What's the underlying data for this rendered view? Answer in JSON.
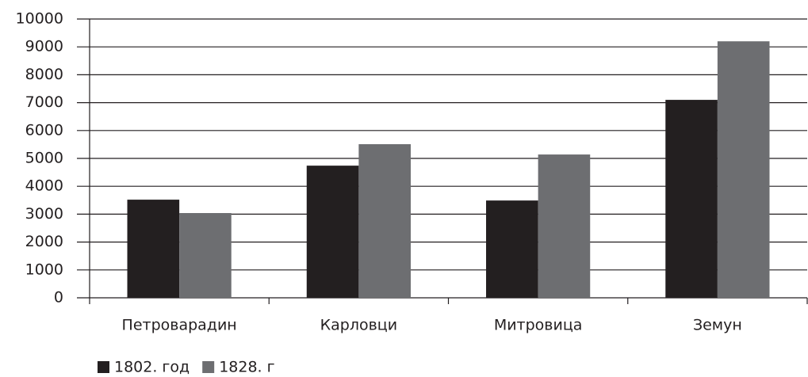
{
  "chart_data": {
    "type": "bar",
    "categories": [
      "Петроварадин",
      "Карловци",
      "Митровица",
      "Земун"
    ],
    "series": [
      {
        "name": "1802. год",
        "color": "#231f20",
        "values": [
          3520,
          4740,
          3490,
          7100
        ]
      },
      {
        "name": "1828. г",
        "color": "#6d6e71",
        "values": [
          3040,
          5510,
          5140,
          9200
        ]
      }
    ],
    "ylim": [
      0,
      10000
    ],
    "yticks": [
      0,
      1000,
      2000,
      3000,
      4000,
      5000,
      6000,
      7000,
      8000,
      9000,
      10000
    ],
    "grid": true,
    "legend": "bottom-left"
  }
}
